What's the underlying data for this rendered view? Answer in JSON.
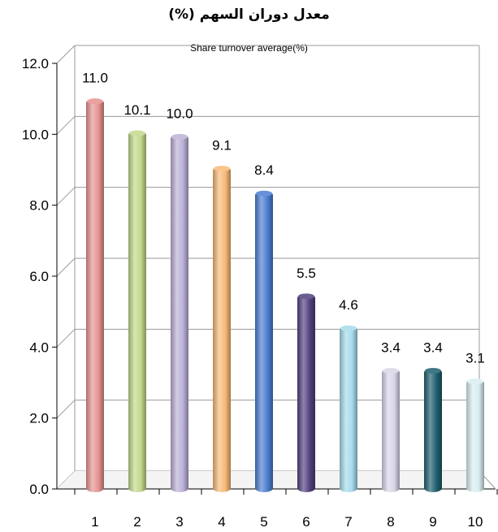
{
  "chart_data": {
    "type": "bar",
    "title": "معدل دوران السهم (%)",
    "subtitle": "Share turnover average(%)",
    "categories": [
      "1",
      "2",
      "3",
      "4",
      "5",
      "6",
      "7",
      "8",
      "9",
      "10"
    ],
    "values": [
      11.0,
      10.1,
      10.0,
      9.1,
      8.4,
      5.5,
      4.6,
      3.4,
      3.4,
      3.1
    ],
    "value_labels": [
      "11.0",
      "10.1",
      "10.0",
      "9.1",
      "8.4",
      "5.5",
      "4.6",
      "3.4",
      "3.4",
      "3.1"
    ],
    "y_ticks": [
      "0.0",
      "2.0",
      "4.0",
      "6.0",
      "8.0",
      "10.0",
      "12.0"
    ],
    "ylim": [
      0,
      12
    ],
    "xlabel": "",
    "ylabel": "",
    "grid": true,
    "legend": "none",
    "colors": [
      "#e6928f",
      "#c2d98c",
      "#bcb0d6",
      "#f8b977",
      "#4c7ed1",
      "#52407e",
      "#a6dcec",
      "#d9d6e9",
      "#1e5e6e",
      "#d9eef2"
    ]
  }
}
